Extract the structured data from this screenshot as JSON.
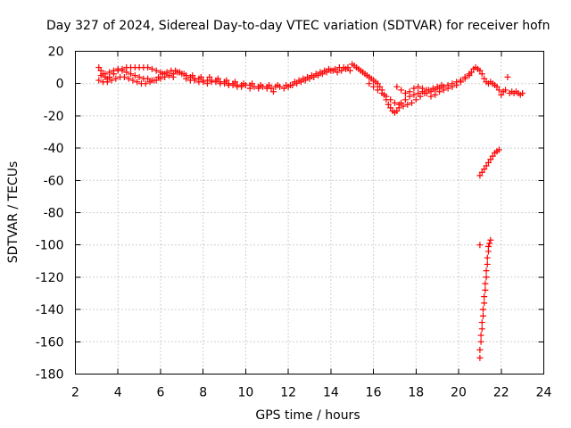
{
  "chart_data": {
    "type": "scatter",
    "title": "Day 327 of 2024, Sidereal Day-to-day VTEC variation (SDTVAR) for receiver hofn",
    "xlabel": "GPS time / hours",
    "ylabel": "SDTVAR / TECUs",
    "xlim": [
      2,
      24
    ],
    "ylim": [
      -180,
      20
    ],
    "xticks": [
      "2",
      "4",
      "6",
      "8",
      "10",
      "12",
      "14",
      "16",
      "18",
      "20",
      "22",
      "24"
    ],
    "yticks": [
      "20",
      "0",
      "-20",
      "-40",
      "-60",
      "-80",
      "-100",
      "-120",
      "-140",
      "-160",
      "-180"
    ],
    "grid": true,
    "marker": "+",
    "color": "#ff0000",
    "series": [
      {
        "name": "SDTVAR",
        "points": [
          [
            3.1,
            10
          ],
          [
            3.2,
            8
          ],
          [
            3.3,
            6
          ],
          [
            3.4,
            4
          ],
          [
            3.5,
            3
          ],
          [
            3.6,
            4
          ],
          [
            3.8,
            6
          ],
          [
            4.0,
            8
          ],
          [
            4.2,
            9
          ],
          [
            4.4,
            10
          ],
          [
            4.6,
            10
          ],
          [
            4.8,
            10
          ],
          [
            5.0,
            10
          ],
          [
            5.2,
            10
          ],
          [
            5.4,
            10
          ],
          [
            5.6,
            9
          ],
          [
            5.8,
            8
          ],
          [
            6.0,
            7
          ],
          [
            6.2,
            6
          ],
          [
            6.4,
            5
          ],
          [
            6.6,
            4
          ],
          [
            3.1,
            2
          ],
          [
            3.3,
            1
          ],
          [
            3.5,
            1
          ],
          [
            3.7,
            2
          ],
          [
            3.9,
            3
          ],
          [
            4.1,
            4
          ],
          [
            4.3,
            4
          ],
          [
            4.5,
            3
          ],
          [
            4.7,
            2
          ],
          [
            4.9,
            1
          ],
          [
            5.1,
            0
          ],
          [
            5.3,
            0
          ],
          [
            5.5,
            1
          ],
          [
            5.7,
            2
          ],
          [
            5.9,
            4
          ],
          [
            6.1,
            6
          ],
          [
            6.3,
            7
          ],
          [
            6.5,
            8
          ],
          [
            6.7,
            8
          ],
          [
            6.9,
            7
          ],
          [
            3.2,
            5
          ],
          [
            3.4,
            6
          ],
          [
            3.6,
            7
          ],
          [
            3.8,
            8
          ],
          [
            4.0,
            9
          ],
          [
            4.2,
            8
          ],
          [
            4.4,
            7
          ],
          [
            4.6,
            6
          ],
          [
            4.8,
            5
          ],
          [
            5.0,
            4
          ],
          [
            5.2,
            3
          ],
          [
            5.4,
            3
          ],
          [
            5.6,
            2
          ],
          [
            5.8,
            2
          ],
          [
            6.0,
            3
          ],
          [
            6.2,
            4
          ],
          [
            6.4,
            5
          ],
          [
            6.6,
            6
          ],
          [
            6.8,
            7
          ],
          [
            7.0,
            6
          ],
          [
            7.2,
            5
          ],
          [
            7.4,
            4
          ],
          [
            7.6,
            3
          ],
          [
            7.8,
            3
          ],
          [
            8.0,
            2
          ],
          [
            8.2,
            2
          ],
          [
            8.4,
            2
          ],
          [
            8.6,
            2
          ],
          [
            8.8,
            1
          ],
          [
            9.0,
            1
          ],
          [
            9.2,
            0
          ],
          [
            9.4,
            0
          ],
          [
            9.6,
            -1
          ],
          [
            9.8,
            -1
          ],
          [
            10.0,
            -1
          ],
          [
            10.2,
            -1
          ],
          [
            10.4,
            -2
          ],
          [
            10.6,
            -2
          ],
          [
            10.8,
            -2
          ],
          [
            11.0,
            -2
          ],
          [
            7.2,
            3
          ],
          [
            7.4,
            2
          ],
          [
            7.6,
            2
          ],
          [
            7.8,
            1
          ],
          [
            8.0,
            1
          ],
          [
            8.2,
            0
          ],
          [
            8.4,
            1
          ],
          [
            8.6,
            1
          ],
          [
            8.8,
            0
          ],
          [
            9.0,
            0
          ],
          [
            9.2,
            -1
          ],
          [
            9.4,
            -1
          ],
          [
            9.6,
            -2
          ],
          [
            9.8,
            -2
          ],
          [
            10.2,
            -3
          ],
          [
            10.6,
            -3
          ],
          [
            11.0,
            -3
          ],
          [
            11.2,
            -3
          ],
          [
            11.4,
            -2
          ],
          [
            11.6,
            -2
          ],
          [
            7.1,
            6
          ],
          [
            7.5,
            5
          ],
          [
            7.9,
            4
          ],
          [
            8.3,
            4
          ],
          [
            8.7,
            3
          ],
          [
            9.1,
            2
          ],
          [
            9.5,
            1
          ],
          [
            9.9,
            0
          ],
          [
            10.3,
            0
          ],
          [
            10.7,
            -1
          ],
          [
            11.1,
            -1
          ],
          [
            11.5,
            -1
          ],
          [
            11.9,
            -1
          ],
          [
            11.3,
            -5
          ],
          [
            11.8,
            -3
          ],
          [
            12.0,
            -2
          ],
          [
            12.2,
            -1
          ],
          [
            12.4,
            0
          ],
          [
            12.6,
            1
          ],
          [
            12.8,
            2
          ],
          [
            13.0,
            3
          ],
          [
            13.2,
            4
          ],
          [
            13.4,
            5
          ],
          [
            13.6,
            6
          ],
          [
            13.8,
            7
          ],
          [
            14.0,
            8
          ],
          [
            14.2,
            9
          ],
          [
            14.4,
            10
          ],
          [
            14.6,
            10
          ],
          [
            14.8,
            10
          ],
          [
            15.0,
            12
          ],
          [
            15.1,
            11
          ],
          [
            15.2,
            10
          ],
          [
            12.1,
            -1
          ],
          [
            12.3,
            1
          ],
          [
            12.5,
            2
          ],
          [
            12.7,
            3
          ],
          [
            12.9,
            4
          ],
          [
            13.1,
            5
          ],
          [
            13.3,
            6
          ],
          [
            13.5,
            7
          ],
          [
            13.7,
            8
          ],
          [
            13.9,
            9
          ],
          [
            14.1,
            8
          ],
          [
            14.3,
            7
          ],
          [
            14.5,
            8
          ],
          [
            14.7,
            9
          ],
          [
            14.9,
            8
          ],
          [
            15.3,
            9
          ],
          [
            15.4,
            8
          ],
          [
            15.5,
            7
          ],
          [
            15.6,
            6
          ],
          [
            15.7,
            5
          ],
          [
            15.8,
            4
          ],
          [
            15.9,
            3
          ],
          [
            16.0,
            2
          ],
          [
            16.1,
            1
          ],
          [
            16.2,
            0
          ],
          [
            16.3,
            -2
          ],
          [
            16.4,
            -4
          ],
          [
            16.5,
            -7
          ],
          [
            16.6,
            -10
          ],
          [
            16.7,
            -13
          ],
          [
            16.8,
            -15
          ],
          [
            16.9,
            -17
          ],
          [
            17.0,
            -18
          ],
          [
            17.1,
            -17
          ],
          [
            17.2,
            -15
          ],
          [
            15.8,
            0
          ],
          [
            16.0,
            -2
          ],
          [
            16.2,
            -4
          ],
          [
            16.4,
            -6
          ],
          [
            16.6,
            -8
          ],
          [
            16.8,
            -10
          ],
          [
            17.0,
            -12
          ],
          [
            17.2,
            -13
          ],
          [
            17.4,
            -14
          ],
          [
            17.6,
            -13
          ],
          [
            17.8,
            -12
          ],
          [
            18.0,
            -10
          ],
          [
            18.2,
            -8
          ],
          [
            18.4,
            -6
          ],
          [
            18.6,
            -4
          ],
          [
            18.8,
            -3
          ],
          [
            19.0,
            -2
          ],
          [
            19.2,
            -1
          ],
          [
            17.3,
            -12
          ],
          [
            17.5,
            -10
          ],
          [
            17.7,
            -8
          ],
          [
            17.9,
            -7
          ],
          [
            18.1,
            -6
          ],
          [
            18.3,
            -5
          ],
          [
            18.5,
            -6
          ],
          [
            18.7,
            -8
          ],
          [
            18.9,
            -7
          ],
          [
            19.1,
            -5
          ],
          [
            19.3,
            -4
          ],
          [
            19.5,
            -3
          ],
          [
            19.7,
            -2
          ],
          [
            19.9,
            -1
          ],
          [
            20.1,
            1
          ],
          [
            20.3,
            3
          ],
          [
            20.5,
            5
          ],
          [
            20.6,
            7
          ],
          [
            20.7,
            9
          ],
          [
            20.8,
            10
          ],
          [
            20.9,
            9
          ],
          [
            21.0,
            8
          ],
          [
            21.1,
            6
          ],
          [
            17.1,
            -2
          ],
          [
            17.3,
            -4
          ],
          [
            17.5,
            -6
          ],
          [
            17.7,
            -5
          ],
          [
            17.9,
            -3
          ],
          [
            18.1,
            -2
          ],
          [
            18.3,
            -3
          ],
          [
            18.5,
            -4
          ],
          [
            18.7,
            -5
          ],
          [
            18.9,
            -4
          ],
          [
            19.1,
            -3
          ],
          [
            19.3,
            -2
          ],
          [
            19.5,
            -1
          ],
          [
            19.7,
            0
          ],
          [
            19.9,
            1
          ],
          [
            20.1,
            2
          ],
          [
            20.3,
            4
          ],
          [
            20.5,
            6
          ],
          [
            21.2,
            3
          ],
          [
            21.3,
            1
          ],
          [
            21.4,
            0
          ],
          [
            21.5,
            1
          ],
          [
            21.6,
            0
          ],
          [
            21.7,
            -1
          ],
          [
            21.8,
            -2
          ],
          [
            21.9,
            -4
          ],
          [
            22.0,
            -7
          ],
          [
            22.1,
            -5
          ],
          [
            22.2,
            -4
          ],
          [
            22.3,
            4
          ],
          [
            22.4,
            -6
          ],
          [
            22.5,
            -5
          ],
          [
            22.6,
            -6
          ],
          [
            22.7,
            -5
          ],
          [
            22.8,
            -6
          ],
          [
            22.9,
            -7
          ],
          [
            23.0,
            -6
          ],
          [
            21.0,
            -57
          ],
          [
            21.1,
            -55
          ],
          [
            21.2,
            -53
          ],
          [
            21.3,
            -51
          ],
          [
            21.4,
            -49
          ],
          [
            21.5,
            -47
          ],
          [
            21.6,
            -45
          ],
          [
            21.7,
            -43
          ],
          [
            21.8,
            -42
          ],
          [
            21.9,
            -41
          ],
          [
            21.0,
            -100
          ],
          [
            21.0,
            -170
          ],
          [
            21.0,
            -165
          ],
          [
            21.05,
            -160
          ],
          [
            21.05,
            -156
          ],
          [
            21.1,
            -152
          ],
          [
            21.1,
            -148
          ],
          [
            21.15,
            -144
          ],
          [
            21.15,
            -140
          ],
          [
            21.2,
            -136
          ],
          [
            21.2,
            -132
          ],
          [
            21.25,
            -128
          ],
          [
            21.25,
            -124
          ],
          [
            21.3,
            -120
          ],
          [
            21.3,
            -116
          ],
          [
            21.35,
            -112
          ],
          [
            21.35,
            -108
          ],
          [
            21.4,
            -104
          ],
          [
            21.4,
            -101
          ],
          [
            21.45,
            -99
          ],
          [
            21.5,
            -97
          ]
        ]
      }
    ]
  }
}
